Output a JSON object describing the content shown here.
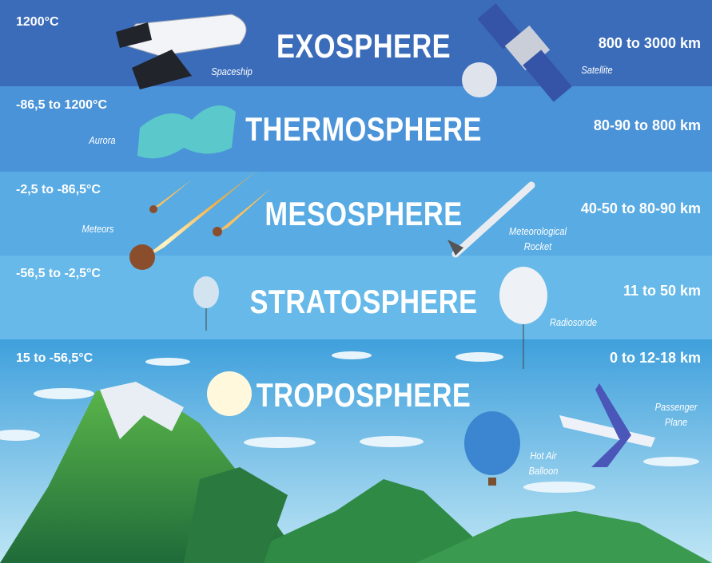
{
  "layers": [
    {
      "name": "EXOSPHERE",
      "temperature": "1200°C",
      "altitude": "800 to 3000 km",
      "objects": [
        "Spaceship",
        "Satellite"
      ]
    },
    {
      "name": "THERMOSPHERE",
      "temperature": "-86,5 to 1200°C",
      "altitude": "80-90 to 800 km",
      "objects": [
        "Aurora"
      ]
    },
    {
      "name": "MESOSPHERE",
      "temperature": "-2,5 to -86,5°C",
      "altitude": "40-50 to 80-90 km",
      "objects": [
        "Meteors",
        "Meteorological Rocket"
      ]
    },
    {
      "name": "STRATOSPHERE",
      "temperature": "-56,5 to -2,5°C",
      "altitude": "11 to 50 km",
      "objects": [
        "Radiosonde"
      ]
    },
    {
      "name": "TROPOSPHERE",
      "temperature": "15 to -56,5°C",
      "altitude": "0 to 12-18 km",
      "objects": [
        "Hot Air Balloon",
        "Passenger Plane"
      ]
    }
  ]
}
